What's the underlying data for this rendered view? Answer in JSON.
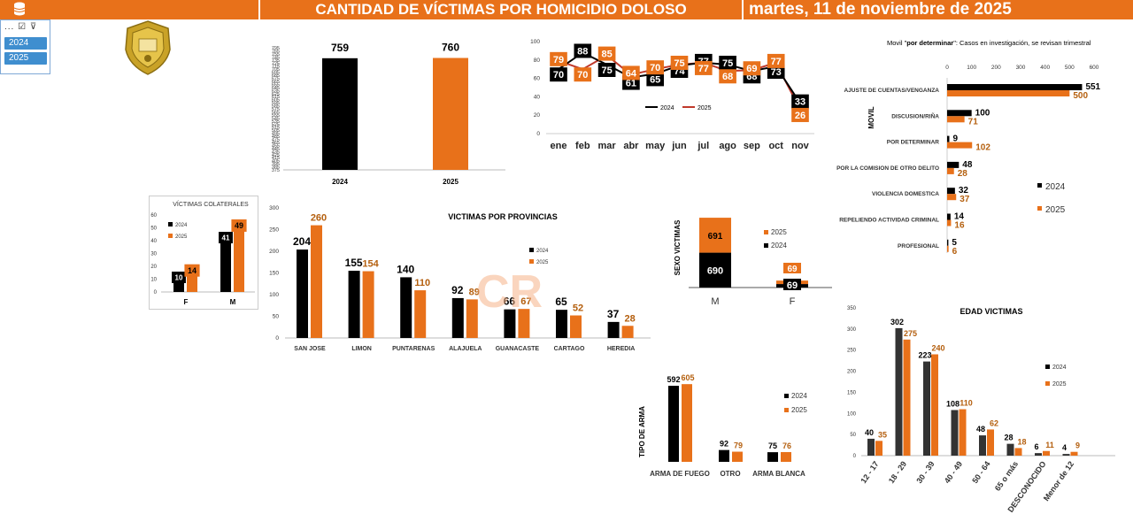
{
  "header": {
    "title": "CANTIDAD DE VÍCTIMAS POR HOMICIDIO DOLOSO",
    "date": "martes, 11 de noviembre de 2025"
  },
  "slicer": {
    "tools": "... ☑ ⊽",
    "items": [
      "2024",
      "2025"
    ]
  },
  "watermark": "CR",
  "colors": {
    "y2024": "#000000",
    "y2025": "#e8711a",
    "line2025": "#c0392b",
    "slicer": "#3f8ecf"
  },
  "chart_data": [
    {
      "id": "total",
      "type": "bar",
      "categories": [
        "2024",
        "2025"
      ],
      "values": [
        759,
        760
      ],
      "ylim": [
        375,
        795
      ],
      "yticks": [
        "795",
        "765",
        "755",
        "745",
        "735",
        "725",
        "715",
        "705",
        "695",
        "685",
        "675",
        "665",
        "655",
        "645",
        "635",
        "625",
        "615",
        "605",
        "595",
        "585",
        "575",
        "565",
        "555",
        "545",
        "535",
        "525",
        "515",
        "505",
        "495",
        "485",
        "475",
        "465",
        "455",
        "445",
        "435",
        "425",
        "415",
        "405",
        "395",
        "385",
        "375"
      ]
    },
    {
      "id": "monthly",
      "type": "line",
      "categories": [
        "ene",
        "feb",
        "mar",
        "abr",
        "may",
        "jun",
        "jul",
        "ago",
        "sep",
        "oct",
        "nov"
      ],
      "ylim": [
        0,
        100
      ],
      "yticks": [
        0,
        20,
        40,
        60,
        80,
        100
      ],
      "series": [
        {
          "name": "2024",
          "values": [
            70,
            88,
            75,
            61,
            65,
            74,
            77,
            75,
            68,
            73,
            33
          ]
        },
        {
          "name": "2025",
          "values": [
            79,
            70,
            85,
            64,
            70,
            75,
            77,
            68,
            69,
            77,
            26
          ]
        }
      ]
    },
    {
      "id": "movil",
      "type": "bar",
      "orientation": "horizontal",
      "title_bold": "por determinar",
      "title_prefix": "Movil \"",
      "title_suffix": "\": Casos en investigación, se revisan trimestral",
      "ylabel": "MOVIL",
      "xlim": [
        0,
        600
      ],
      "xticks": [
        0,
        100,
        200,
        300,
        400,
        500,
        600
      ],
      "categories": [
        "AJUSTE DE CUENTAS/VENGANZA",
        "DISCUSION/RIÑA",
        "POR DETERMINAR",
        "POR LA COMISION DE OTRO DELITO",
        "VIOLENCIA DOMESTICA",
        "REPELIENDO ACTIVIDAD CRIMINAL",
        "PROFESIONAL"
      ],
      "series": [
        {
          "name": "2024",
          "values": [
            551,
            100,
            9,
            48,
            32,
            14,
            5
          ]
        },
        {
          "name": "2025",
          "values": [
            500,
            71,
            102,
            28,
            37,
            16,
            6
          ]
        }
      ]
    },
    {
      "id": "colaterales",
      "type": "bar",
      "title": "VÍCTIMAS COLATERALES",
      "categories": [
        "F",
        "M"
      ],
      "ylim": [
        0,
        60
      ],
      "yticks": [
        0,
        10,
        20,
        30,
        40,
        50,
        60
      ],
      "series": [
        {
          "name": "2024",
          "values": [
            10,
            41
          ]
        },
        {
          "name": "2025",
          "values": [
            14,
            49
          ]
        }
      ]
    },
    {
      "id": "provincias",
      "type": "bar",
      "title": "VICTIMAS POR PROVINCIAS",
      "categories": [
        "SAN JOSE",
        "LIMON",
        "PUNTARENAS",
        "ALAJUELA",
        "GUANACASTE",
        "CARTAGO",
        "HEREDIA"
      ],
      "ylim": [
        0,
        300
      ],
      "yticks": [
        0,
        50,
        100,
        150,
        200,
        250,
        300
      ],
      "series": [
        {
          "name": "2024",
          "values": [
            204,
            155,
            140,
            92,
            66,
            65,
            37
          ]
        },
        {
          "name": "2025",
          "values": [
            260,
            154,
            110,
            89,
            67,
            52,
            28
          ]
        }
      ]
    },
    {
      "id": "sexo",
      "type": "bar",
      "stacked": true,
      "ylabel": "SEXO VICTIMAS",
      "categories": [
        "M",
        "F"
      ],
      "series": [
        {
          "name": "2024",
          "values": [
            690,
            69
          ]
        },
        {
          "name": "2025",
          "values": [
            691,
            69
          ]
        }
      ]
    },
    {
      "id": "arma",
      "type": "bar",
      "ylabel": "TIPO DE ARMA",
      "categories": [
        "ARMA DE FUEGO",
        "OTRO",
        "ARMA BLANCA"
      ],
      "series": [
        {
          "name": "2024",
          "values": [
            592,
            92,
            75
          ]
        },
        {
          "name": "2025",
          "values": [
            605,
            79,
            76
          ]
        }
      ]
    },
    {
      "id": "edad",
      "type": "bar",
      "title": "EDAD VICTIMAS",
      "categories": [
        "12 - 17",
        "18 - 29",
        "30 - 39",
        "40 - 49",
        "50 - 64",
        "65 o más",
        "DESCONOCIDO",
        "Menor de 12"
      ],
      "ylim": [
        0,
        350
      ],
      "yticks": [
        0,
        50,
        100,
        150,
        200,
        250,
        300,
        350
      ],
      "series": [
        {
          "name": "2024",
          "values": [
            40,
            302,
            223,
            108,
            48,
            28,
            6,
            4
          ]
        },
        {
          "name": "2025",
          "values": [
            35,
            275,
            240,
            110,
            62,
            18,
            11,
            9
          ]
        }
      ]
    }
  ]
}
